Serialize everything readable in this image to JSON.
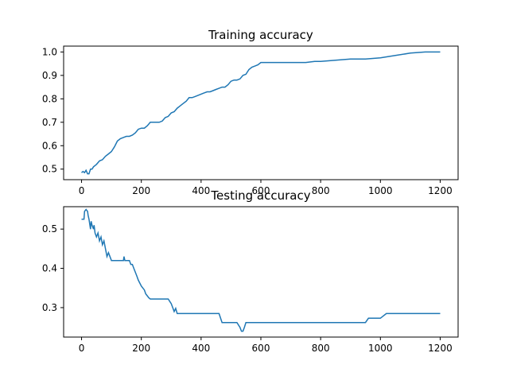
{
  "figure": {
    "background": "#ffffff",
    "line_color": "#1f77b4",
    "axis_color": "#000000"
  },
  "chart_data": [
    {
      "type": "line",
      "title": "Training accuracy",
      "xlabel": "",
      "ylabel": "",
      "xlim": [
        -60,
        1260
      ],
      "ylim": [
        0.455,
        1.025
      ],
      "xticks": [
        0,
        200,
        400,
        600,
        800,
        1000,
        1200
      ],
      "yticks": [
        0.5,
        0.6,
        0.7,
        0.8,
        0.9,
        1.0
      ],
      "ytick_labels": [
        "0.5",
        "0.6",
        "0.7",
        "0.8",
        "0.9",
        "1.0"
      ],
      "grid": false,
      "series": [
        {
          "color": "#1f77b4",
          "x": [
            0,
            5,
            10,
            15,
            20,
            25,
            30,
            35,
            40,
            50,
            60,
            70,
            80,
            90,
            100,
            110,
            120,
            130,
            140,
            150,
            160,
            170,
            180,
            190,
            200,
            210,
            220,
            230,
            240,
            250,
            260,
            270,
            280,
            290,
            300,
            310,
            320,
            330,
            340,
            350,
            360,
            370,
            380,
            390,
            400,
            410,
            420,
            430,
            440,
            450,
            460,
            470,
            480,
            490,
            500,
            510,
            520,
            530,
            540,
            550,
            560,
            570,
            580,
            590,
            600,
            650,
            700,
            750,
            780,
            800,
            850,
            900,
            950,
            1000,
            1050,
            1100,
            1150,
            1200
          ],
          "y": [
            0.485,
            0.49,
            0.485,
            0.495,
            0.48,
            0.48,
            0.5,
            0.5,
            0.51,
            0.52,
            0.535,
            0.54,
            0.555,
            0.565,
            0.575,
            0.595,
            0.62,
            0.63,
            0.635,
            0.64,
            0.64,
            0.645,
            0.655,
            0.67,
            0.675,
            0.675,
            0.685,
            0.7,
            0.7,
            0.7,
            0.7,
            0.705,
            0.72,
            0.725,
            0.74,
            0.745,
            0.76,
            0.77,
            0.78,
            0.79,
            0.805,
            0.805,
            0.81,
            0.815,
            0.82,
            0.825,
            0.83,
            0.83,
            0.835,
            0.84,
            0.845,
            0.85,
            0.85,
            0.86,
            0.875,
            0.88,
            0.88,
            0.885,
            0.9,
            0.905,
            0.925,
            0.935,
            0.94,
            0.945,
            0.955,
            0.955,
            0.955,
            0.955,
            0.96,
            0.96,
            0.965,
            0.97,
            0.97,
            0.975,
            0.985,
            0.995,
            1.0,
            1.0
          ]
        }
      ]
    },
    {
      "type": "line",
      "title": "Testing accuracy",
      "xlabel": "",
      "ylabel": "",
      "xlim": [
        -60,
        1260
      ],
      "ylim": [
        0.225,
        0.557
      ],
      "xticks": [
        0,
        200,
        400,
        600,
        800,
        1000,
        1200
      ],
      "yticks": [
        0.3,
        0.4,
        0.5
      ],
      "ytick_labels": [
        "0.3",
        "0.4",
        "0.5"
      ],
      "grid": false,
      "series": [
        {
          "color": "#1f77b4",
          "x": [
            0,
            8,
            10,
            15,
            20,
            22,
            25,
            30,
            32,
            35,
            40,
            42,
            45,
            50,
            55,
            60,
            65,
            70,
            75,
            80,
            85,
            90,
            100,
            110,
            120,
            130,
            140,
            142,
            145,
            150,
            160,
            165,
            170,
            175,
            180,
            185,
            190,
            200,
            205,
            210,
            215,
            220,
            225,
            230,
            240,
            250,
            260,
            270,
            280,
            290,
            300,
            305,
            310,
            315,
            320,
            330,
            400,
            460,
            470,
            520,
            530,
            535,
            540,
            545,
            550,
            600,
            700,
            800,
            900,
            950,
            960,
            1000,
            1020,
            1050,
            1100,
            1150,
            1200
          ],
          "y": [
            0.525,
            0.525,
            0.545,
            0.55,
            0.545,
            0.535,
            0.525,
            0.5,
            0.52,
            0.51,
            0.5,
            0.51,
            0.49,
            0.48,
            0.49,
            0.47,
            0.48,
            0.46,
            0.47,
            0.45,
            0.43,
            0.44,
            0.42,
            0.42,
            0.42,
            0.42,
            0.42,
            0.43,
            0.42,
            0.42,
            0.42,
            0.41,
            0.41,
            0.4,
            0.39,
            0.38,
            0.37,
            0.355,
            0.35,
            0.345,
            0.335,
            0.33,
            0.325,
            0.322,
            0.322,
            0.322,
            0.322,
            0.322,
            0.322,
            0.322,
            0.31,
            0.3,
            0.29,
            0.298,
            0.285,
            0.285,
            0.285,
            0.285,
            0.262,
            0.262,
            0.25,
            0.24,
            0.24,
            0.25,
            0.262,
            0.262,
            0.262,
            0.262,
            0.262,
            0.262,
            0.273,
            0.273,
            0.285,
            0.285,
            0.285,
            0.285,
            0.285
          ]
        }
      ]
    }
  ]
}
